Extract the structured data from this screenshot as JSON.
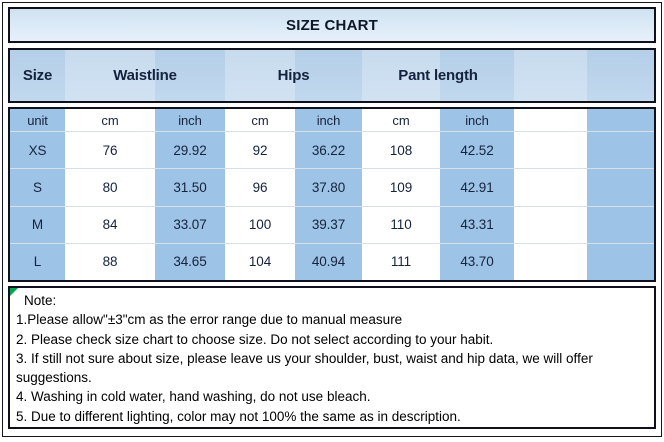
{
  "title": {
    "text": "SIZE CHART"
  },
  "header": {
    "labels": [
      "Size",
      "Waistline",
      "Hips",
      "Pant length",
      ""
    ]
  },
  "sizeTable": {
    "unitRow": [
      "unit",
      "cm",
      "inch",
      "cm",
      "inch",
      "cm",
      "inch",
      "",
      ""
    ],
    "rows": [
      [
        "XS",
        "76",
        "29.92",
        "92",
        "36.22",
        "108",
        "42.52",
        "",
        ""
      ],
      [
        "S",
        "80",
        "31.50",
        "96",
        "37.80",
        "109",
        "42.91",
        "",
        ""
      ],
      [
        "M",
        "84",
        "33.07",
        "100",
        "39.37",
        "110",
        "43.31",
        "",
        ""
      ],
      [
        "L",
        "88",
        "34.65",
        "104",
        "40.94",
        "111",
        "43.70",
        "",
        ""
      ]
    ]
  },
  "notes": {
    "heading": "Note:",
    "lines": [
      "1.Please allow\"±3\"cm as the error range due to manual measure",
      "2. Please check size chart to choose size. Do not select according to your habit.",
      "3. If still not sure about size, please leave us your shoulder, bust, waist and hip data, we will offer suggestions.",
      "4. Washing in cold water, hand washing, do not use bleach.",
      "5. Due to different lighting, color may not 100% the same as in description."
    ]
  },
  "colors": {
    "body_column_blue": "#9dc3e6",
    "header_band_blue": "#bdd7ee",
    "title_band_blue": "#deeaf6",
    "table_text_navy": "#16233d",
    "note_text": "#000000",
    "box_border": "#10101c",
    "corner_marker_green": "#00a651"
  }
}
